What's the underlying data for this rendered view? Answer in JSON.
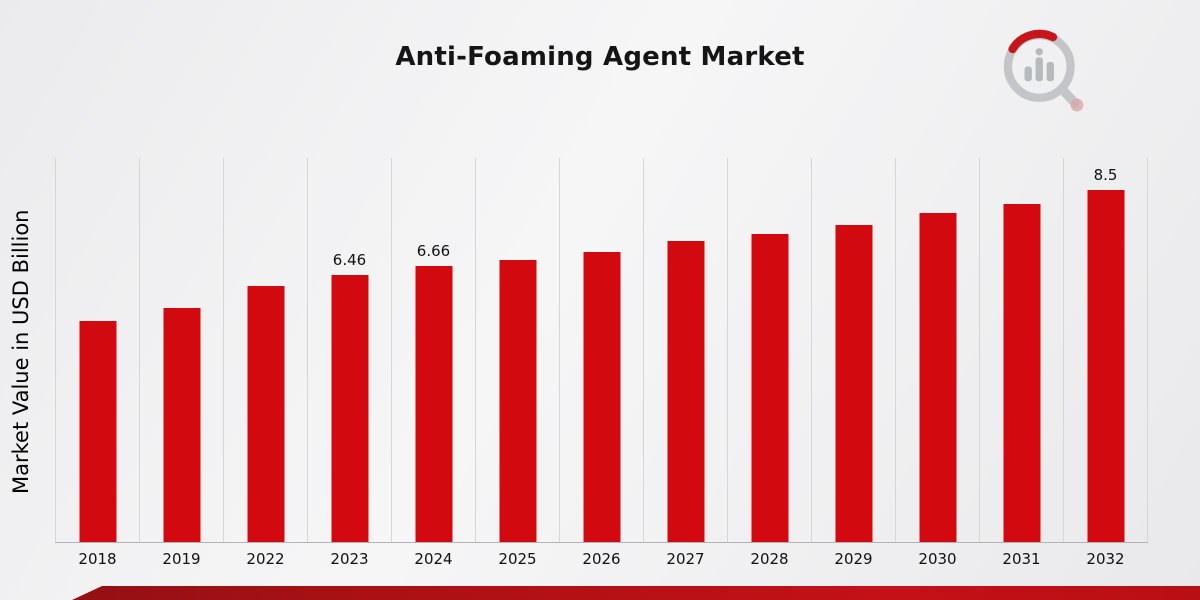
{
  "chart_data": {
    "type": "bar",
    "title": "Anti-Foaming Agent Market",
    "ylabel": "Market Value in USD Billion",
    "xlabel": "",
    "categories": [
      "2018",
      "2019",
      "2022",
      "2023",
      "2024",
      "2025",
      "2026",
      "2027",
      "2028",
      "2029",
      "2030",
      "2031",
      "2032"
    ],
    "values": [
      5.35,
      5.66,
      6.19,
      6.46,
      6.66,
      6.82,
      7.01,
      7.28,
      7.45,
      7.66,
      7.95,
      8.17,
      8.5
    ],
    "data_labels": {
      "2023": "6.46",
      "2024": "6.66",
      "2032": "8.5"
    },
    "ylim": [
      0,
      9.3
    ],
    "grid": "vertical",
    "legend": "none",
    "bar_color": "#d20a10",
    "grid_color": "#d6d6d8",
    "ribbon_color": "#b01014"
  },
  "logo": {
    "name": "chart-magnifier-logo",
    "ring_color": "#c3c5c8",
    "accent_color": "#c8151a",
    "bars_color": "#b7babd"
  }
}
